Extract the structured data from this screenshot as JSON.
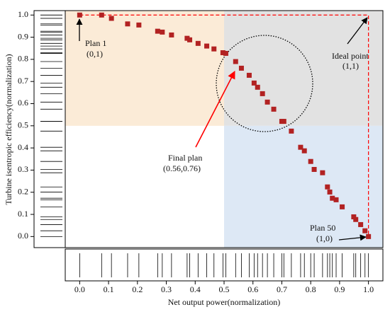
{
  "chart_data": {
    "type": "scatter",
    "x_label": "Net output power(normalization)",
    "y_label": "Turbine isentropic efficiency(normalization)",
    "color": "#b22222",
    "x": [
      0,
      0.076,
      0.11,
      0.166,
      0.205,
      0.27,
      0.286,
      0.318,
      0.372,
      0.381,
      0.41,
      0.44,
      0.465,
      0.496,
      0.506,
      0.54,
      0.56,
      0.587,
      0.604,
      0.616,
      0.633,
      0.65,
      0.672,
      0.7,
      0.707,
      0.733,
      0.765,
      0.778,
      0.8,
      0.812,
      0.841,
      0.858,
      0.866,
      0.875,
      0.888,
      0.909,
      0.949,
      0.956,
      0.973,
      0.988,
      1
    ],
    "values": [
      1,
      1,
      0.985,
      0.96,
      0.955,
      0.927,
      0.923,
      0.91,
      0.895,
      0.888,
      0.872,
      0.86,
      0.847,
      0.83,
      0.827,
      0.79,
      0.76,
      0.728,
      0.693,
      0.674,
      0.645,
      0.607,
      0.575,
      0.52,
      0.52,
      0.476,
      0.403,
      0.387,
      0.339,
      0.303,
      0.288,
      0.224,
      0.201,
      0.173,
      0.166,
      0.134,
      0.089,
      0.077,
      0.054,
      0.026,
      0
    ],
    "xlim": [
      -0.05,
      1.05
    ],
    "ylim": [
      -0.05,
      1.02
    ],
    "xticks": [
      {
        "value": 0,
        "label": "0.0"
      },
      0.1,
      0.2,
      0.3,
      0.4,
      0.5,
      0.6,
      0.7,
      0.8,
      0.9,
      {
        "value": 1,
        "label": "1.0"
      }
    ],
    "yticks": [
      {
        "value": 0,
        "label": "0.0"
      },
      0.1,
      0.2,
      0.3,
      0.4,
      0.5,
      0.6,
      0.7,
      0.8,
      0.9,
      {
        "value": 1,
        "label": "1.0"
      }
    ],
    "annotations": [
      "Plan 1",
      "(0,1)",
      "Ideal point",
      "(1,1)",
      "Final plan",
      "(0.56,0.76)",
      "Plan 50",
      "(1,0)"
    ]
  }
}
